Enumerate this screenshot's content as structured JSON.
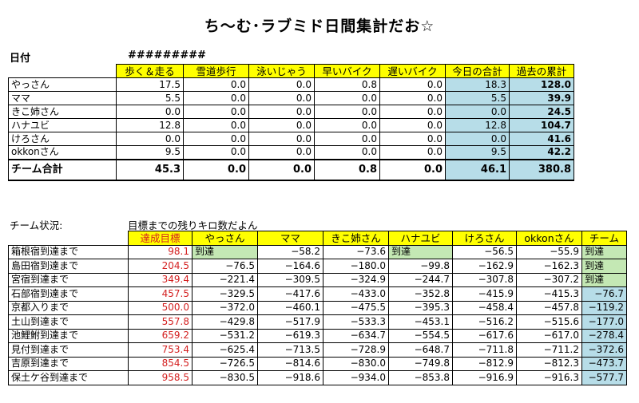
{
  "title": "ち～む･ラブミド日間集計だお☆",
  "date_label": "日付",
  "date_value": "#########",
  "daily": {
    "headers": [
      "",
      "歩く＆走る",
      "雪道歩行",
      "泳いじゃう",
      "早いバイク",
      "遅いバイク",
      "今日の合計",
      "過去の累計"
    ],
    "rows": [
      {
        "name": "やっさん",
        "v": [
          "17.5",
          "0.0",
          "0.0",
          "0.8",
          "0.0",
          "18.3",
          "128.0"
        ]
      },
      {
        "name": "ママ",
        "v": [
          "5.5",
          "0.0",
          "0.0",
          "0.0",
          "0.0",
          "5.5",
          "39.9"
        ]
      },
      {
        "name": "きこ姉さん",
        "v": [
          "0.0",
          "0.0",
          "0.0",
          "0.0",
          "0.0",
          "0.0",
          "24.5"
        ]
      },
      {
        "name": "ハナユビ",
        "v": [
          "12.8",
          "0.0",
          "0.0",
          "0.0",
          "0.0",
          "12.8",
          "104.7"
        ]
      },
      {
        "name": "けろさん",
        "v": [
          "0.0",
          "0.0",
          "0.0",
          "0.0",
          "0.0",
          "0.0",
          "41.6"
        ]
      },
      {
        "name": "okkonさん",
        "v": [
          "9.5",
          "0.0",
          "0.0",
          "0.0",
          "0.0",
          "9.5",
          "42.2"
        ]
      }
    ],
    "total": {
      "name": "チーム合計",
      "v": [
        "45.3",
        "0.0",
        "0.0",
        "0.8",
        "0.0",
        "46.1",
        "380.8"
      ]
    }
  },
  "status_label": "チーム状況:",
  "status_sub": "目標までの残りキロ数だよん",
  "status": {
    "headers": [
      "",
      "達成目標",
      "やっさん",
      "ママ",
      "きこ姉さん",
      "ハナユビ",
      "けろさん",
      "okkonさん",
      "チーム"
    ],
    "rows": [
      {
        "name": "箱根宿到達まで",
        "target": "98.1",
        "v": [
          "到達",
          "−58.2",
          "−73.6",
          "到達",
          "−56.5",
          "−55.9",
          "到達"
        ]
      },
      {
        "name": "島田宿到達まで",
        "target": "204.5",
        "v": [
          "−76.5",
          "−164.6",
          "−180.0",
          "−99.8",
          "−162.9",
          "−162.3",
          "到達"
        ]
      },
      {
        "name": "宮宿到達まで",
        "target": "349.4",
        "v": [
          "−221.4",
          "−309.5",
          "−324.9",
          "−244.7",
          "−307.8",
          "−307.2",
          "到達"
        ]
      },
      {
        "name": "石部宿到達まで",
        "target": "457.5",
        "v": [
          "−329.5",
          "−417.6",
          "−433.0",
          "−352.8",
          "−415.9",
          "−415.3",
          "−76.7"
        ]
      },
      {
        "name": "京都入りまで",
        "target": "500.0",
        "v": [
          "−372.0",
          "−460.1",
          "−475.5",
          "−395.3",
          "−458.4",
          "−457.8",
          "−119.2"
        ]
      },
      {
        "name": "土山到達まで",
        "target": "557.8",
        "v": [
          "−429.8",
          "−517.9",
          "−533.3",
          "−453.1",
          "−516.2",
          "−515.6",
          "−177.0"
        ]
      },
      {
        "name": "池鯉鮒到達まで",
        "target": "659.2",
        "v": [
          "−531.2",
          "−619.3",
          "−634.7",
          "−554.5",
          "−617.6",
          "−617.0",
          "−278.4"
        ]
      },
      {
        "name": "見付到達まで",
        "target": "753.4",
        "v": [
          "−625.4",
          "−713.5",
          "−728.9",
          "−648.7",
          "−711.8",
          "−711.2",
          "−372.6"
        ]
      },
      {
        "name": "吉原到達まで",
        "target": "854.5",
        "v": [
          "−726.5",
          "−814.6",
          "−830.0",
          "−749.8",
          "−812.9",
          "−812.3",
          "−473.7"
        ]
      },
      {
        "name": "保土ケ谷到達まで",
        "target": "958.5",
        "v": [
          "−830.5",
          "−918.6",
          "−934.0",
          "−853.8",
          "−916.9",
          "−916.3",
          "−577.7"
        ]
      }
    ]
  }
}
